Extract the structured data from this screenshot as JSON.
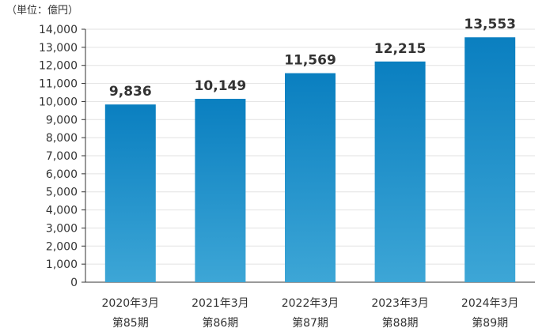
{
  "chart_data": {
    "type": "bar",
    "unit_label": "（単位：億円）",
    "categories": [
      {
        "year": "2020年3月",
        "period": "第85期"
      },
      {
        "year": "2021年3月",
        "period": "第86期"
      },
      {
        "year": "2022年3月",
        "period": "第87期"
      },
      {
        "year": "2023年3月",
        "period": "第88期"
      },
      {
        "year": "2024年3月",
        "period": "第89期"
      }
    ],
    "values": [
      9836,
      10149,
      11569,
      12215,
      13553
    ],
    "value_labels": [
      "9,836",
      "10,149",
      "11,569",
      "12,215",
      "13,553"
    ],
    "yticks": [
      "0",
      "1,000",
      "2,000",
      "3,000",
      "4,000",
      "5,000",
      "6,000",
      "7,000",
      "8,000",
      "9,000",
      "10,000",
      "11,000",
      "12,000",
      "13,000",
      "14,000"
    ],
    "ylim": [
      0,
      14000
    ],
    "grid": true,
    "colors": {
      "bar_top": "#0A7FC0",
      "bar_bottom": "#3DA6D6",
      "grid": "#E2E2E2",
      "axis": "#333333"
    }
  }
}
